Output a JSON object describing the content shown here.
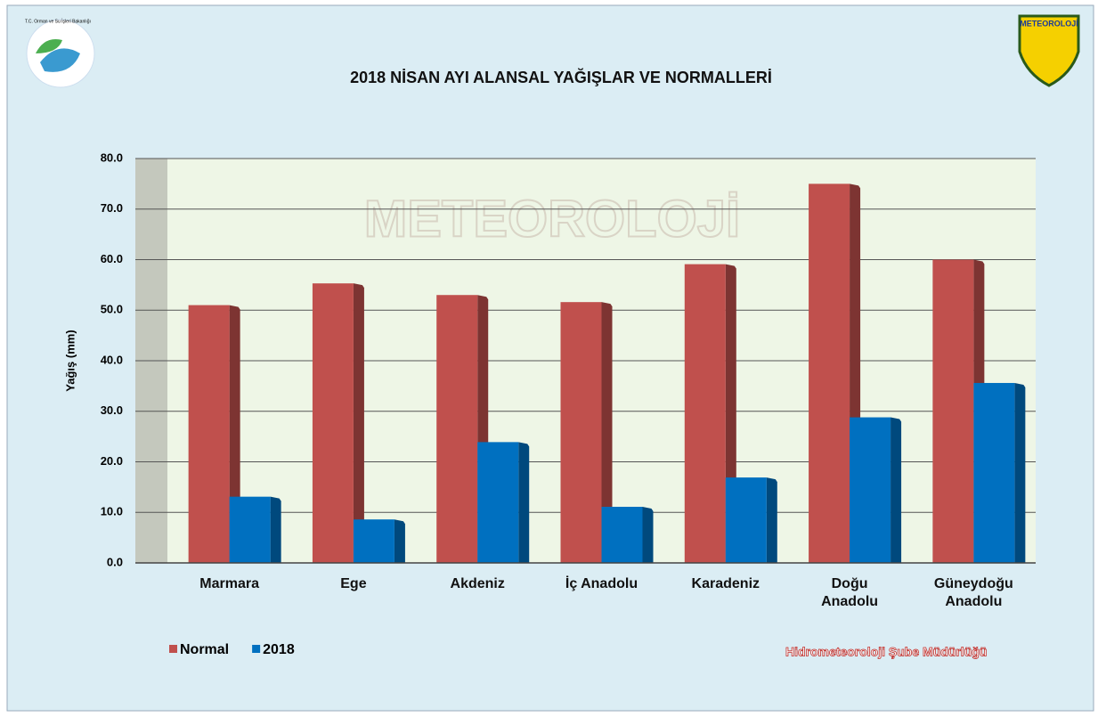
{
  "chart_data": {
    "type": "bar",
    "title": "2018 NİSAN AYI ALANSAL YAĞIŞLAR VE NORMALLERİ",
    "y_label": "Yağış (mm)",
    "categories": [
      "Marmara",
      "Ege",
      "Akdeniz",
      "İç Anadolu",
      "Karadeniz",
      "Doğu Anadolu",
      "Güneydoğu Anadolu"
    ],
    "series": [
      {
        "name": "Normal",
        "color": "#c0504d",
        "values": [
          51.0,
          55.3,
          53.0,
          51.6,
          59.1,
          75.0,
          60.0
        ]
      },
      {
        "name": "2018",
        "color": "#0070c0",
        "values": [
          13.1,
          8.6,
          23.9,
          11.1,
          16.9,
          28.8,
          35.6
        ]
      }
    ],
    "ylim": [
      0,
      80
    ],
    "yticks": [
      {
        "value": 0,
        "label": "0.0"
      },
      {
        "value": 10,
        "label": "10.0"
      },
      {
        "value": 20,
        "label": "20.0"
      },
      {
        "value": 30,
        "label": "30.0"
      },
      {
        "value": 40,
        "label": "40.0"
      },
      {
        "value": 50,
        "label": "50.0"
      },
      {
        "value": 60,
        "label": "60.0"
      },
      {
        "value": 70,
        "label": "70.0"
      },
      {
        "value": 80,
        "label": "80.0"
      }
    ],
    "grid": true,
    "legend": "bottom-left",
    "footer": "Hidrometeoroloji Şube Müdürlüğü",
    "watermark": "METEOROLOJİ",
    "logo_left": "T.C. Orman ve Su İşleri Bakanlığı",
    "logo_right": "METEOROLOJİ"
  }
}
